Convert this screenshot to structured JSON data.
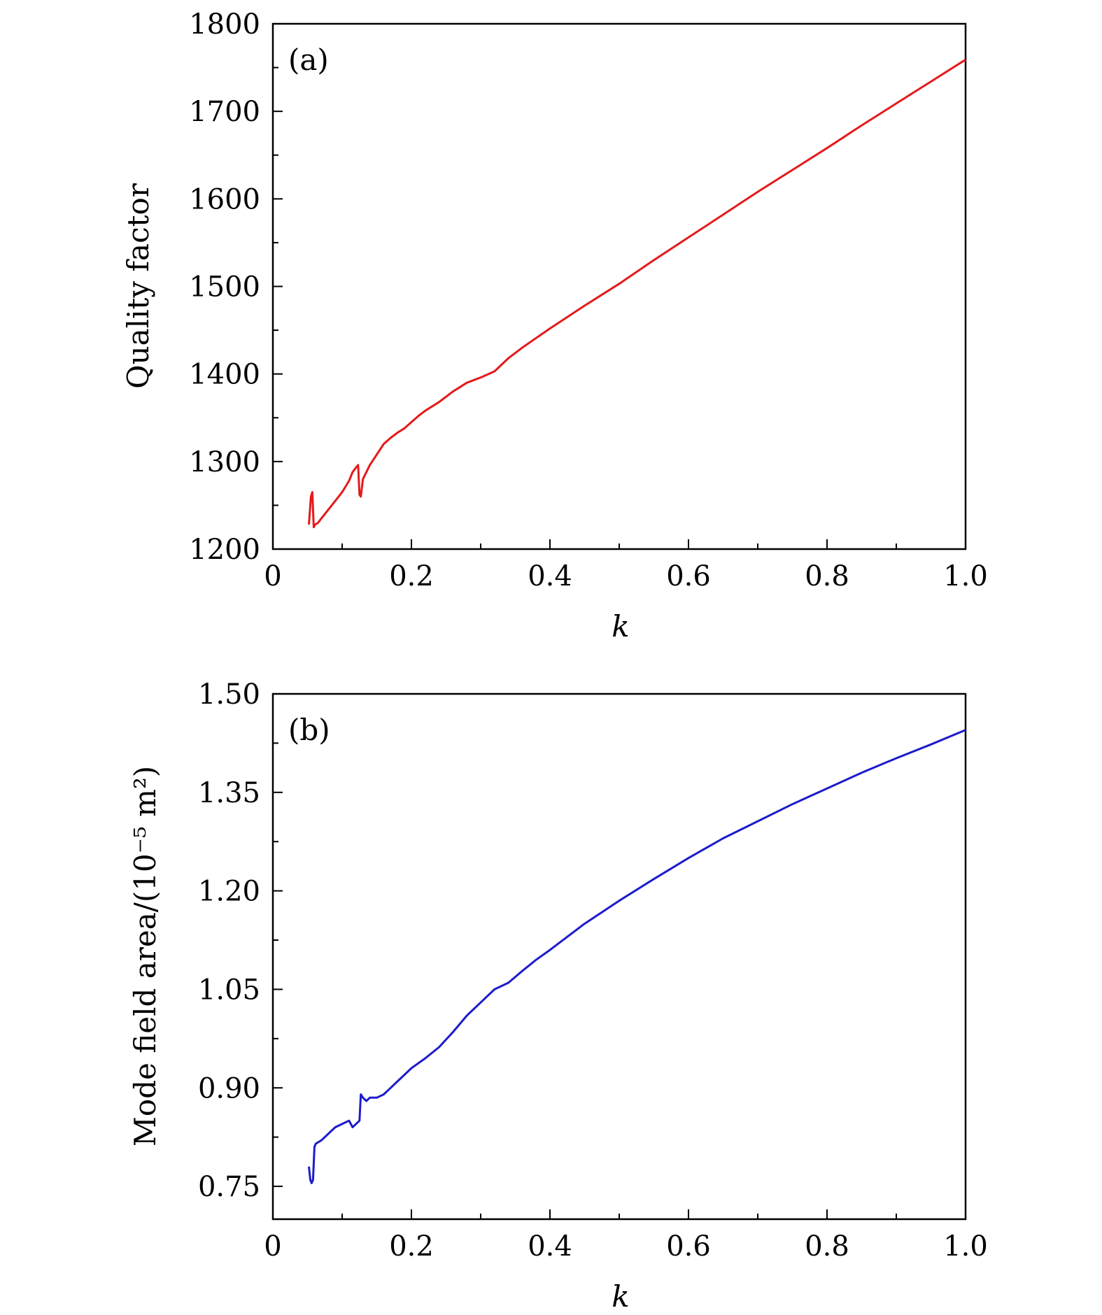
{
  "chart_data": [
    {
      "type": "line",
      "panel_label": "(a)",
      "xlabel": "k",
      "ylabel": "Quality factor",
      "xlim": [
        0,
        1.0
      ],
      "ylim": [
        1200,
        1800
      ],
      "x_ticks": [
        "0",
        "0.2",
        "0.4",
        "0.6",
        "0.8",
        "1.0"
      ],
      "y_ticks": [
        "1200",
        "1300",
        "1400",
        "1500",
        "1600",
        "1700",
        "1800"
      ],
      "x_tick_values": [
        0,
        0.2,
        0.4,
        0.6,
        0.8,
        1.0
      ],
      "y_tick_values": [
        1200,
        1300,
        1400,
        1500,
        1600,
        1700,
        1800
      ],
      "grid": false,
      "color": "#e41a1c",
      "series": [
        {
          "x": [
            0.052,
            0.055,
            0.057,
            0.059,
            0.061,
            0.065,
            0.07,
            0.08,
            0.09,
            0.1,
            0.11,
            0.115,
            0.12,
            0.123,
            0.125,
            0.127,
            0.13,
            0.14,
            0.15,
            0.16,
            0.17,
            0.18,
            0.19,
            0.2,
            0.21,
            0.22,
            0.24,
            0.26,
            0.28,
            0.3,
            0.32,
            0.34,
            0.36,
            0.38,
            0.4,
            0.45,
            0.5,
            0.55,
            0.6,
            0.65,
            0.7,
            0.75,
            0.8,
            0.85,
            0.9,
            0.95,
            1.0
          ],
          "y": [
            1228,
            1260,
            1265,
            1225,
            1228,
            1230,
            1235,
            1245,
            1255,
            1265,
            1278,
            1288,
            1293,
            1296,
            1262,
            1260,
            1280,
            1296,
            1308,
            1320,
            1327,
            1333,
            1338,
            1345,
            1352,
            1358,
            1368,
            1380,
            1390,
            1396,
            1403,
            1418,
            1430,
            1441,
            1452,
            1478,
            1503,
            1530,
            1556,
            1582,
            1608,
            1633,
            1658,
            1684,
            1709,
            1734,
            1759
          ]
        }
      ]
    },
    {
      "type": "line",
      "panel_label": "(b)",
      "xlabel": "k",
      "ylabel": "Mode field area/(10⁻⁵ m²)",
      "xlim": [
        0,
        1.0
      ],
      "ylim": [
        0.7,
        1.5
      ],
      "x_ticks": [
        "0",
        "0.2",
        "0.4",
        "0.6",
        "0.8",
        "1.0"
      ],
      "y_ticks": [
        "0.75",
        "0.90",
        "1.05",
        "1.20",
        "1.35",
        "1.50"
      ],
      "x_tick_values": [
        0,
        0.2,
        0.4,
        0.6,
        0.8,
        1.0
      ],
      "y_tick_values": [
        0.75,
        0.9,
        1.05,
        1.2,
        1.35,
        1.5
      ],
      "grid": false,
      "color": "#1c1ccc",
      "series": [
        {
          "x": [
            0.052,
            0.054,
            0.056,
            0.058,
            0.06,
            0.062,
            0.07,
            0.08,
            0.09,
            0.1,
            0.11,
            0.115,
            0.12,
            0.125,
            0.127,
            0.13,
            0.135,
            0.14,
            0.15,
            0.16,
            0.17,
            0.18,
            0.19,
            0.2,
            0.22,
            0.24,
            0.26,
            0.28,
            0.3,
            0.32,
            0.34,
            0.36,
            0.38,
            0.4,
            0.45,
            0.5,
            0.55,
            0.6,
            0.65,
            0.7,
            0.75,
            0.8,
            0.85,
            0.9,
            0.95,
            1.0
          ],
          "y": [
            0.78,
            0.76,
            0.755,
            0.76,
            0.81,
            0.815,
            0.82,
            0.83,
            0.84,
            0.845,
            0.85,
            0.84,
            0.845,
            0.85,
            0.89,
            0.885,
            0.88,
            0.885,
            0.885,
            0.89,
            0.9,
            0.91,
            0.92,
            0.93,
            0.945,
            0.962,
            0.985,
            1.01,
            1.03,
            1.05,
            1.06,
            1.078,
            1.095,
            1.11,
            1.15,
            1.185,
            1.218,
            1.25,
            1.28,
            1.306,
            1.332,
            1.356,
            1.38,
            1.402,
            1.423,
            1.445
          ]
        }
      ]
    }
  ]
}
